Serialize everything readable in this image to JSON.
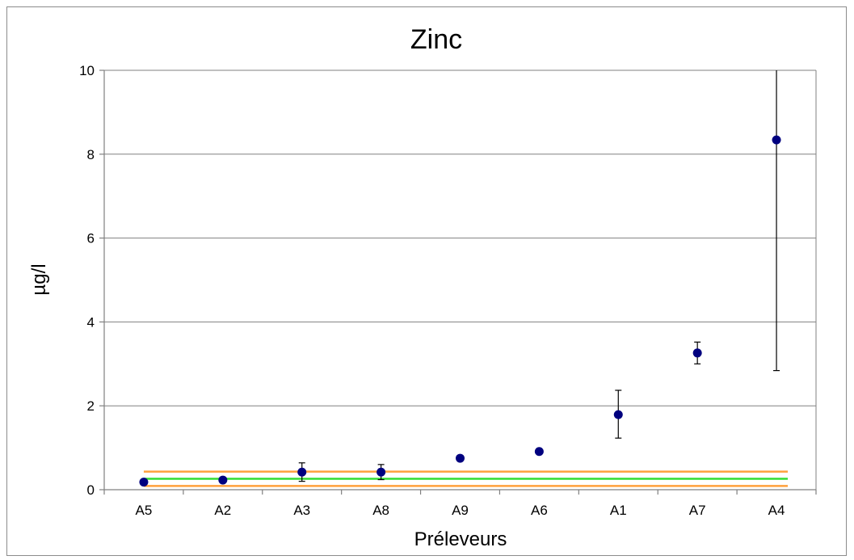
{
  "chart_data": {
    "type": "scatter",
    "title": "Zinc",
    "xlabel": "Préleveurs",
    "ylabel": "µg/l",
    "categories": [
      "A5",
      "A2",
      "A3",
      "A8",
      "A9",
      "A6",
      "A1",
      "A7",
      "A4"
    ],
    "ylim": [
      0,
      10
    ],
    "yticks": [
      0,
      2,
      4,
      6,
      8,
      10
    ],
    "grid": true,
    "legend": "none",
    "series": [
      {
        "values": [
          0.18,
          0.23,
          0.42,
          0.42,
          0.75,
          0.91,
          1.79,
          3.26,
          8.34
        ],
        "error_low": [
          0.18,
          0.23,
          0.2,
          0.24,
          0.75,
          0.91,
          1.23,
          3.0,
          2.84
        ],
        "error_high": [
          0.18,
          0.23,
          0.64,
          0.6,
          0.75,
          0.91,
          2.37,
          3.52,
          10.0
        ],
        "color": "#00007f"
      }
    ],
    "reference_lines": [
      {
        "value": 0.43,
        "color": "#ffa03c"
      },
      {
        "value": 0.26,
        "color": "#33dd33"
      },
      {
        "value": 0.09,
        "color": "#ffa03c"
      }
    ]
  }
}
